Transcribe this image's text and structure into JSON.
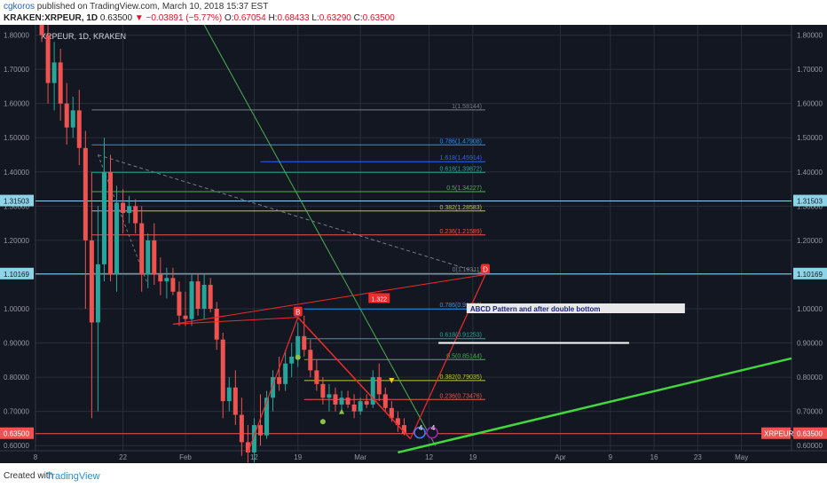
{
  "header": {
    "author": "cgkoros",
    "published": "published on TradingView.com, March 10, 2018 15:37 EST",
    "symbol": "KRAKEN:XRPEUR, 1D",
    "last": "0.63500",
    "change_arrow": "▼",
    "change": "−0.03891 (−5.77%)",
    "o_label": "O:",
    "o_val": "0.67054",
    "h_label": "H:",
    "h_val": "0.68433",
    "l_label": "L:",
    "l_val": "0.63290",
    "c_label": "C:",
    "c_val": "0.63500"
  },
  "footer": {
    "created_with": "Created with",
    "brand": "TradingView"
  },
  "colors": {
    "background": "#131722",
    "up": "#26a69a",
    "down": "#ef5350",
    "grid": "#2a2e39",
    "axis_text": "#9598a1"
  },
  "chart_data": {
    "type": "candlestick",
    "legend_text": "XRPEUR, 1D, KRAKEN",
    "y_axis": {
      "min": 0.585,
      "max": 1.83,
      "ticks": [
        1.8,
        1.7,
        1.6,
        1.5,
        1.4,
        1.3,
        1.2,
        1.1,
        1.0,
        0.9,
        0.8,
        0.7,
        0.6
      ],
      "tick_labels": [
        "1.80000",
        "1.70000",
        "1.60000",
        "1.50000",
        "1.40000",
        "1.30000",
        "1.20000",
        "1.10000",
        "1.00000",
        "0.90000",
        "0.80000",
        "0.70000",
        "0.60000"
      ]
    },
    "x_axis": {
      "domain_days": [
        0,
        121
      ],
      "ticks": [
        {
          "day": 0,
          "label": "8"
        },
        {
          "day": 14,
          "label": "22"
        },
        {
          "day": 24,
          "label": "Feb"
        },
        {
          "day": 35,
          "label": "12"
        },
        {
          "day": 42,
          "label": "19"
        },
        {
          "day": 52,
          "label": "Mar"
        },
        {
          "day": 63,
          "label": "12"
        },
        {
          "day": 70,
          "label": "19"
        },
        {
          "day": 84,
          "label": "Apr"
        },
        {
          "day": 92,
          "label": "9"
        },
        {
          "day": 99,
          "label": "16"
        },
        {
          "day": 106,
          "label": "23"
        },
        {
          "day": 113,
          "label": "May"
        }
      ]
    },
    "price_tags": [
      {
        "value": 1.31503,
        "label": "1.31503"
      },
      {
        "value": 1.10169,
        "label": "1.10169"
      },
      {
        "value": 0.635,
        "label": "0.63500"
      }
    ],
    "symbol_tag": "XRPEUR",
    "candles": [
      {
        "d": 1,
        "o": 1.95,
        "h": 2.0,
        "l": 1.78,
        "c": 1.8
      },
      {
        "d": 2,
        "o": 1.8,
        "h": 1.86,
        "l": 1.6,
        "c": 1.66
      },
      {
        "d": 3,
        "o": 1.66,
        "h": 1.78,
        "l": 1.58,
        "c": 1.72
      },
      {
        "d": 4,
        "o": 1.72,
        "h": 1.76,
        "l": 1.55,
        "c": 1.6
      },
      {
        "d": 5,
        "o": 1.6,
        "h": 1.66,
        "l": 1.48,
        "c": 1.53
      },
      {
        "d": 6,
        "o": 1.53,
        "h": 1.62,
        "l": 1.5,
        "c": 1.58
      },
      {
        "d": 7,
        "o": 1.58,
        "h": 1.64,
        "l": 1.42,
        "c": 1.47
      },
      {
        "d": 8,
        "o": 1.47,
        "h": 1.52,
        "l": 1.0,
        "c": 1.2
      },
      {
        "d": 9,
        "o": 1.2,
        "h": 1.4,
        "l": 0.68,
        "c": 0.96
      },
      {
        "d": 10,
        "o": 0.96,
        "h": 1.3,
        "l": 0.7,
        "c": 1.13
      },
      {
        "d": 11,
        "o": 1.13,
        "h": 1.5,
        "l": 1.08,
        "c": 1.4
      },
      {
        "d": 12,
        "o": 1.4,
        "h": 1.45,
        "l": 1.08,
        "c": 1.1
      },
      {
        "d": 13,
        "o": 1.1,
        "h": 1.36,
        "l": 1.05,
        "c": 1.31
      },
      {
        "d": 14,
        "o": 1.31,
        "h": 1.35,
        "l": 1.22,
        "c": 1.28
      },
      {
        "d": 15,
        "o": 1.28,
        "h": 1.33,
        "l": 1.25,
        "c": 1.3
      },
      {
        "d": 16,
        "o": 1.3,
        "h": 1.32,
        "l": 1.22,
        "c": 1.25
      },
      {
        "d": 17,
        "o": 1.25,
        "h": 1.3,
        "l": 1.05,
        "c": 1.1
      },
      {
        "d": 18,
        "o": 1.1,
        "h": 1.22,
        "l": 1.06,
        "c": 1.2
      },
      {
        "d": 19,
        "o": 1.2,
        "h": 1.25,
        "l": 1.07,
        "c": 1.1
      },
      {
        "d": 20,
        "o": 1.1,
        "h": 1.15,
        "l": 1.04,
        "c": 1.08
      },
      {
        "d": 21,
        "o": 1.08,
        "h": 1.12,
        "l": 1.03,
        "c": 1.09
      },
      {
        "d": 22,
        "o": 1.09,
        "h": 1.12,
        "l": 1.04,
        "c": 1.05
      },
      {
        "d": 23,
        "o": 1.05,
        "h": 1.08,
        "l": 0.95,
        "c": 0.98
      },
      {
        "d": 24,
        "o": 0.98,
        "h": 1.05,
        "l": 0.95,
        "c": 0.97
      },
      {
        "d": 25,
        "o": 0.97,
        "h": 1.1,
        "l": 0.95,
        "c": 1.08
      },
      {
        "d": 26,
        "o": 1.08,
        "h": 1.1,
        "l": 0.98,
        "c": 1.0
      },
      {
        "d": 27,
        "o": 1.0,
        "h": 1.1,
        "l": 0.97,
        "c": 1.07
      },
      {
        "d": 28,
        "o": 1.07,
        "h": 1.09,
        "l": 0.99,
        "c": 1.0
      },
      {
        "d": 29,
        "o": 1.0,
        "h": 1.02,
        "l": 0.88,
        "c": 0.91
      },
      {
        "d": 30,
        "o": 0.91,
        "h": 0.93,
        "l": 0.68,
        "c": 0.73
      },
      {
        "d": 31,
        "o": 0.73,
        "h": 0.8,
        "l": 0.7,
        "c": 0.77
      },
      {
        "d": 32,
        "o": 0.77,
        "h": 0.82,
        "l": 0.66,
        "c": 0.69
      },
      {
        "d": 33,
        "o": 0.69,
        "h": 0.74,
        "l": 0.57,
        "c": 0.61
      },
      {
        "d": 34,
        "o": 0.61,
        "h": 0.66,
        "l": 0.55,
        "c": 0.58
      },
      {
        "d": 35,
        "o": 0.58,
        "h": 0.68,
        "l": 0.55,
        "c": 0.66
      },
      {
        "d": 36,
        "o": 0.66,
        "h": 0.75,
        "l": 0.6,
        "c": 0.63
      },
      {
        "d": 37,
        "o": 0.63,
        "h": 0.76,
        "l": 0.62,
        "c": 0.74
      },
      {
        "d": 38,
        "o": 0.74,
        "h": 0.82,
        "l": 0.7,
        "c": 0.8
      },
      {
        "d": 39,
        "o": 0.8,
        "h": 0.86,
        "l": 0.76,
        "c": 0.78
      },
      {
        "d": 40,
        "o": 0.78,
        "h": 0.88,
        "l": 0.76,
        "c": 0.84
      },
      {
        "d": 41,
        "o": 0.84,
        "h": 0.9,
        "l": 0.8,
        "c": 0.86
      },
      {
        "d": 42,
        "o": 0.86,
        "h": 0.96,
        "l": 0.83,
        "c": 0.92
      },
      {
        "d": 43,
        "o": 0.92,
        "h": 0.98,
        "l": 0.86,
        "c": 0.88
      },
      {
        "d": 44,
        "o": 0.88,
        "h": 0.91,
        "l": 0.8,
        "c": 0.82
      },
      {
        "d": 45,
        "o": 0.82,
        "h": 0.85,
        "l": 0.76,
        "c": 0.78
      },
      {
        "d": 46,
        "o": 0.78,
        "h": 0.8,
        "l": 0.72,
        "c": 0.74
      },
      {
        "d": 47,
        "o": 0.74,
        "h": 0.78,
        "l": 0.7,
        "c": 0.75
      },
      {
        "d": 48,
        "o": 0.75,
        "h": 0.77,
        "l": 0.7,
        "c": 0.72
      },
      {
        "d": 49,
        "o": 0.72,
        "h": 0.76,
        "l": 0.7,
        "c": 0.74
      },
      {
        "d": 50,
        "o": 0.74,
        "h": 0.76,
        "l": 0.71,
        "c": 0.72
      },
      {
        "d": 51,
        "o": 0.72,
        "h": 0.75,
        "l": 0.68,
        "c": 0.7
      },
      {
        "d": 52,
        "o": 0.7,
        "h": 0.74,
        "l": 0.69,
        "c": 0.73
      },
      {
        "d": 53,
        "o": 0.73,
        "h": 0.75,
        "l": 0.71,
        "c": 0.72
      },
      {
        "d": 54,
        "o": 0.72,
        "h": 0.82,
        "l": 0.71,
        "c": 0.8
      },
      {
        "d": 55,
        "o": 0.8,
        "h": 0.84,
        "l": 0.73,
        "c": 0.75
      },
      {
        "d": 56,
        "o": 0.75,
        "h": 0.77,
        "l": 0.7,
        "c": 0.71
      },
      {
        "d": 57,
        "o": 0.71,
        "h": 0.73,
        "l": 0.67,
        "c": 0.68
      },
      {
        "d": 58,
        "o": 0.68,
        "h": 0.7,
        "l": 0.64,
        "c": 0.66
      },
      {
        "d": 59,
        "o": 0.66,
        "h": 0.68,
        "l": 0.63,
        "c": 0.635
      }
    ],
    "fib_retracement_top": {
      "day_start": 9,
      "day_end": 72,
      "levels": [
        {
          "value": 1.58144,
          "label": "1(1.58144)",
          "color": "#787b86"
        },
        {
          "value": 1.47908,
          "label": "0.786(1.47908)",
          "color": "#2196f3"
        },
        {
          "value": 1.39872,
          "label": "0.618(1.39872)",
          "color": "#26a69a"
        },
        {
          "value": 1.34227,
          "label": "0.5(1.34227)",
          "color": "#4caf50"
        },
        {
          "value": 1.28583,
          "label": "0.382(1.28583)",
          "color": "#c0ca33"
        },
        {
          "value": 1.21589,
          "label": "0.236(1.21589)",
          "color": "#ef5350"
        },
        {
          "value": 1.10311,
          "label": "0(1.10311)",
          "color": "#787b86"
        }
      ],
      "extra_label": {
        "value": 1.43,
        "text": "1.618(1.45914)",
        "color": "#2962ff",
        "day_start": 36
      }
    },
    "fib_retracement_bottom": {
      "day_start": 43,
      "day_end": 72,
      "levels": [
        {
          "value": 0.9995,
          "label": "0.786(0.99950)",
          "color": "#2196f3"
        },
        {
          "value": 0.91253,
          "label": "0.618(0.91253)",
          "color": "#26a69a"
        },
        {
          "value": 0.85144,
          "label": "0.5(0.85144)",
          "color": "#4caf50"
        },
        {
          "value": 0.79035,
          "label": "0.382(0.79035)",
          "color": "#c0ca33"
        },
        {
          "value": 0.73476,
          "label": "0.236(0.73476)",
          "color": "#ef5350"
        }
      ]
    },
    "abcd": {
      "points": [
        {
          "label": "B",
          "day": 42,
          "value": 0.975
        },
        {
          "label": "C",
          "day": 60,
          "value": 0.62
        },
        {
          "label": "D",
          "day": 72,
          "value": 1.1
        }
      ],
      "ratio_label": "1.322",
      "annotation": "ABCD Pattern and after double bottom"
    },
    "markers": {
      "count_label": "4"
    }
  }
}
